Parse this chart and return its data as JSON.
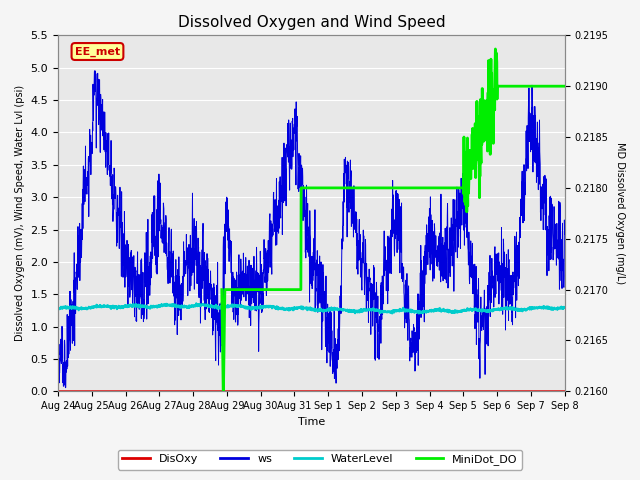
{
  "title": "Dissolved Oxygen and Wind Speed",
  "xlabel": "Time",
  "ylabel_left": "Dissolved Oxygen (mV), Wind Speed, Water Lvl (psi)",
  "ylabel_right": "MD Dissolved Oxygen (mg/L)",
  "ylim_left": [
    0.0,
    5.5
  ],
  "ylim_right": [
    0.216,
    0.2195
  ],
  "yticks_left": [
    0.0,
    0.5,
    1.0,
    1.5,
    2.0,
    2.5,
    3.0,
    3.5,
    4.0,
    4.5,
    5.0,
    5.5
  ],
  "yticks_right": [
    0.216,
    0.2165,
    0.217,
    0.2175,
    0.218,
    0.2185,
    0.219,
    0.2195
  ],
  "xtick_labels": [
    "Aug 24",
    "Aug 25",
    "Aug 26",
    "Aug 27",
    "Aug 28",
    "Aug 29",
    "Aug 30",
    "Aug 31",
    "Sep 1",
    "Sep 2",
    "Sep 3",
    "Sep 4",
    "Sep 5",
    "Sep 6",
    "Sep 7",
    "Sep 8"
  ],
  "station_label": "EE_met",
  "station_box_color": "#ffff99",
  "station_box_edge": "#cc0000",
  "disoxy_color": "#dd0000",
  "ws_color": "#0000dd",
  "waterlevel_color": "#00cccc",
  "minidot_color": "#00ee00",
  "plot_bg_color": "#e8e8e8",
  "grid_color": "#ffffff",
  "legend_items": [
    "DisOxy",
    "ws",
    "WaterLevel",
    "MiniDot_DO"
  ],
  "legend_colors": [
    "#dd0000",
    "#0000dd",
    "#00cccc",
    "#00ee00"
  ]
}
